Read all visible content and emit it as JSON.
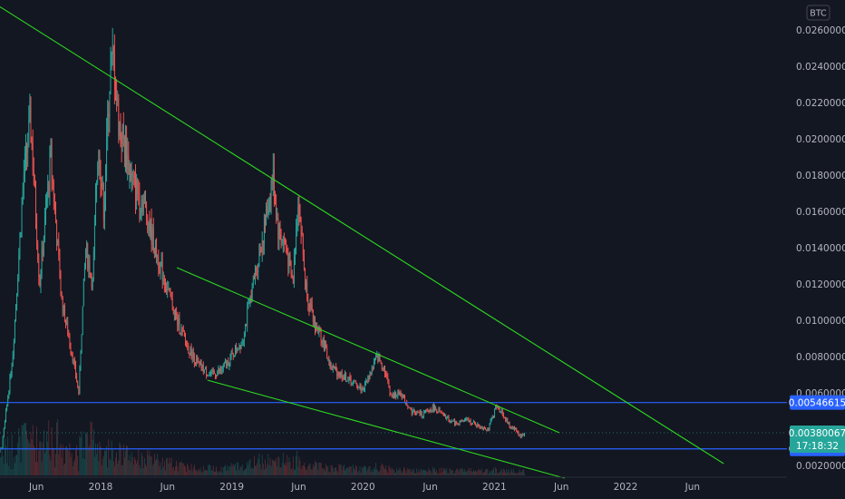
{
  "chart_data": {
    "type": "candlestick",
    "currency_badge": "BTC",
    "x_tick_labels": [
      "Jun",
      "2018",
      "Jun",
      "2019",
      "Jun",
      "2020",
      "Jun",
      "2021",
      "Jun",
      "2022",
      "Jun"
    ],
    "y_tick_labels": [
      "0.02600000",
      "0.02400000",
      "0.02200000",
      "0.02000000",
      "0.01800000",
      "0.01600000",
      "0.01400000",
      "0.01200000",
      "0.01000000",
      "0.00800000",
      "0.00600000",
      "0.00200000"
    ],
    "ylim": [
      0.0018,
      0.0272
    ],
    "price_path": [
      [
        "2017-03-01",
        0.002
      ],
      [
        "2017-04-01",
        0.003
      ],
      [
        "2017-05-01",
        0.008
      ],
      [
        "2017-06-01",
        0.018
      ],
      [
        "2017-06-20",
        0.021
      ],
      [
        "2017-07-15",
        0.012
      ],
      [
        "2017-08-15",
        0.019
      ],
      [
        "2017-09-15",
        0.011
      ],
      [
        "2017-10-15",
        0.008
      ],
      [
        "2017-11-01",
        0.006
      ],
      [
        "2017-11-20",
        0.014
      ],
      [
        "2017-12-10",
        0.012
      ],
      [
        "2017-12-25",
        0.02
      ],
      [
        "2018-01-10",
        0.016
      ],
      [
        "2018-01-25",
        0.023
      ],
      [
        "2018-02-05",
        0.0245
      ],
      [
        "2018-02-20",
        0.021
      ],
      [
        "2018-03-10",
        0.0195
      ],
      [
        "2018-04-01",
        0.0175
      ],
      [
        "2018-05-01",
        0.0165
      ],
      [
        "2018-06-01",
        0.014
      ],
      [
        "2018-07-01",
        0.012
      ],
      [
        "2018-08-01",
        0.01
      ],
      [
        "2018-09-01",
        0.0085
      ],
      [
        "2018-10-01",
        0.0075
      ],
      [
        "2018-11-01",
        0.007
      ],
      [
        "2018-12-01",
        0.0072
      ],
      [
        "2019-01-01",
        0.008
      ],
      [
        "2019-02-01",
        0.009
      ],
      [
        "2019-03-01",
        0.012
      ],
      [
        "2019-04-01",
        0.015
      ],
      [
        "2019-04-25",
        0.018
      ],
      [
        "2019-05-10",
        0.015
      ],
      [
        "2019-06-01",
        0.014
      ],
      [
        "2019-06-20",
        0.012
      ],
      [
        "2019-07-05",
        0.017
      ],
      [
        "2019-07-25",
        0.012
      ],
      [
        "2019-08-15",
        0.01
      ],
      [
        "2019-09-10",
        0.009
      ],
      [
        "2019-10-01",
        0.0075
      ],
      [
        "2019-11-01",
        0.007
      ],
      [
        "2019-12-01",
        0.0066
      ],
      [
        "2020-01-01",
        0.0062
      ],
      [
        "2020-02-10",
        0.008
      ],
      [
        "2020-03-01",
        0.0073
      ],
      [
        "2020-03-20",
        0.0058
      ],
      [
        "2020-04-15",
        0.006
      ],
      [
        "2020-05-15",
        0.005
      ],
      [
        "2020-06-15",
        0.0048
      ],
      [
        "2020-07-15",
        0.0052
      ],
      [
        "2020-08-15",
        0.0047
      ],
      [
        "2020-09-15",
        0.0043
      ],
      [
        "2020-10-15",
        0.0045
      ],
      [
        "2020-11-15",
        0.0042
      ],
      [
        "2020-12-15",
        0.004
      ],
      [
        "2021-01-05",
        0.0052
      ],
      [
        "2021-01-20",
        0.005
      ],
      [
        "2021-02-10",
        0.0042
      ],
      [
        "2021-02-28",
        0.004
      ],
      [
        "2021-03-15",
        0.0036
      ],
      [
        "2021-03-28",
        0.0038
      ]
    ],
    "trend_lines": [
      {
        "from": [
          "2017-03-01",
          0.0276
        ],
        "to": [
          "2022-10-01",
          0.0021
        ]
      },
      {
        "from": [
          "2018-08-01",
          0.0129
        ],
        "to": [
          "2021-07-01",
          0.0038
        ]
      },
      {
        "from": [
          "2018-10-25",
          0.0067
        ],
        "to": [
          "2021-07-15",
          0.0013
        ]
      }
    ],
    "horizontal_levels": [
      {
        "label": "0.00546615",
        "value": 0.00546615
      },
      {
        "label": "0.00291282",
        "value": 0.00291282
      }
    ],
    "last_price": {
      "label": "0.00380067",
      "value": 0.00380067,
      "countdown": "17:18:32"
    },
    "colors": {
      "background": "#131722",
      "up_candle": "#26a69a",
      "down_candle": "#ef5350",
      "trend_line": "#2cd71f",
      "level_line": "#2962ff",
      "last_price_tag": "#26a69a",
      "axis_text": "#b2b5be"
    },
    "grid": false,
    "volume_bars": true
  }
}
